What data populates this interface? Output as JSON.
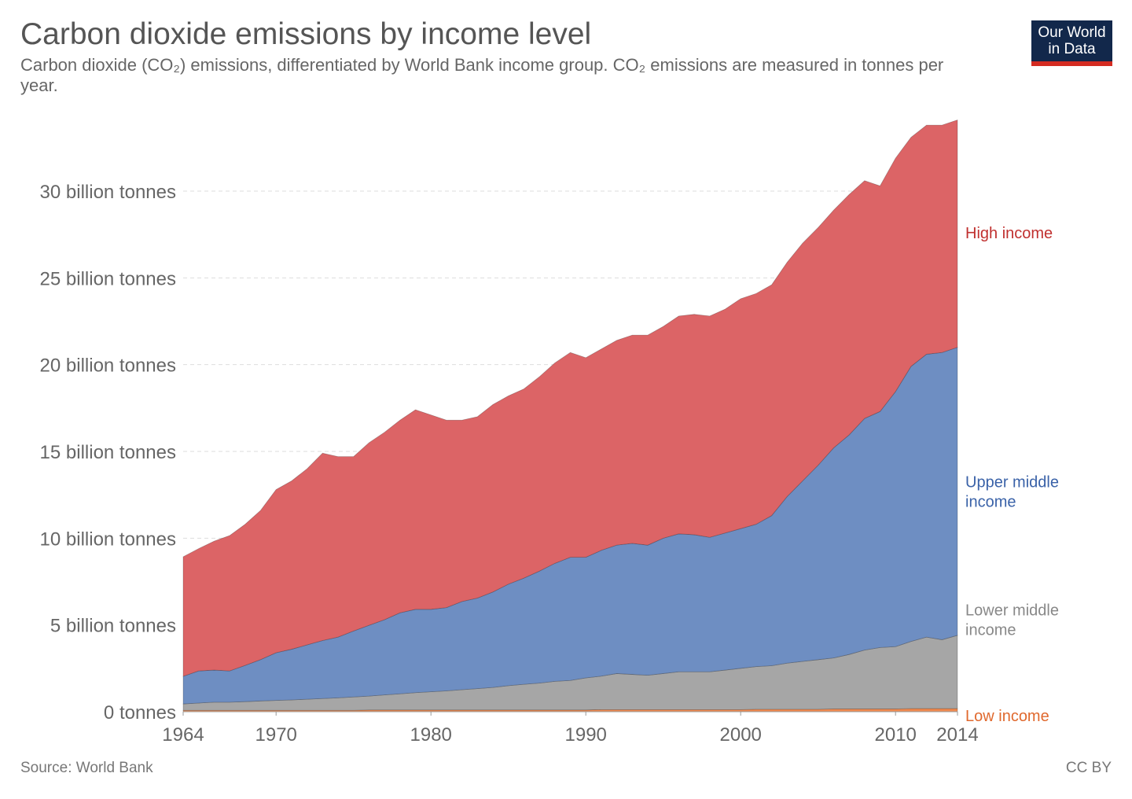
{
  "title": "Carbon dioxide emissions by income level",
  "subtitle": "Carbon dioxide (CO₂) emissions, differentiated by World Bank income group. CO₂ emissions are measured in tonnes per year.",
  "logo": "Our World in Data",
  "source": "Source: World Bank",
  "license": "CC BY",
  "chart_data": {
    "type": "area",
    "stacked": true,
    "title": "Carbon dioxide emissions by income level",
    "unit": "billion tonnes",
    "x": [
      1964,
      1965,
      1966,
      1967,
      1968,
      1969,
      1970,
      1971,
      1972,
      1973,
      1974,
      1975,
      1976,
      1977,
      1978,
      1979,
      1980,
      1981,
      1982,
      1983,
      1984,
      1985,
      1986,
      1987,
      1988,
      1989,
      1990,
      1991,
      1992,
      1993,
      1994,
      1995,
      1996,
      1997,
      1998,
      1999,
      2000,
      2001,
      2002,
      2003,
      2004,
      2005,
      2006,
      2007,
      2008,
      2009,
      2010,
      2011,
      2012,
      2013,
      2014
    ],
    "xticks": [
      "1964",
      "1970",
      "1980",
      "1990",
      "2000",
      "2010",
      "2014"
    ],
    "xtick_values": [
      1964,
      1970,
      1980,
      1990,
      2000,
      2010,
      2014
    ],
    "yticks": [
      "0 tonnes",
      "5 billion tonnes",
      "10 billion tonnes",
      "15 billion tonnes",
      "20 billion tonnes",
      "25 billion tonnes",
      "30 billion tonnes"
    ],
    "ytick_values": [
      0,
      5,
      10,
      15,
      20,
      25,
      30
    ],
    "ylim": [
      0,
      34.1
    ],
    "grid": "horizontal dashed",
    "legend": "right, inline labels",
    "series": [
      {
        "name": "Low income",
        "color": "#f08a50",
        "label_color": "#e0692e",
        "values": [
          0.08,
          0.08,
          0.08,
          0.08,
          0.08,
          0.08,
          0.08,
          0.08,
          0.08,
          0.08,
          0.08,
          0.08,
          0.1,
          0.1,
          0.1,
          0.1,
          0.1,
          0.1,
          0.1,
          0.1,
          0.1,
          0.1,
          0.1,
          0.1,
          0.1,
          0.1,
          0.1,
          0.12,
          0.12,
          0.12,
          0.12,
          0.12,
          0.12,
          0.12,
          0.12,
          0.12,
          0.12,
          0.14,
          0.14,
          0.14,
          0.14,
          0.14,
          0.16,
          0.16,
          0.16,
          0.16,
          0.16,
          0.18,
          0.18,
          0.18,
          0.18
        ]
      },
      {
        "name": "Lower middle income",
        "color": "#a6a6a6",
        "label_color": "#888888",
        "values": [
          0.37,
          0.42,
          0.47,
          0.47,
          0.5,
          0.54,
          0.57,
          0.6,
          0.64,
          0.68,
          0.72,
          0.77,
          0.8,
          0.87,
          0.93,
          1.0,
          1.05,
          1.1,
          1.17,
          1.23,
          1.3,
          1.4,
          1.48,
          1.55,
          1.65,
          1.7,
          1.85,
          1.93,
          2.08,
          2.03,
          1.98,
          2.08,
          2.18,
          2.18,
          2.18,
          2.28,
          2.38,
          2.46,
          2.51,
          2.66,
          2.76,
          2.86,
          2.94,
          3.14,
          3.39,
          3.54,
          3.59,
          3.87,
          4.12,
          3.97,
          4.22
        ]
      },
      {
        "name": "Upper middle income",
        "color": "#6e8ec2",
        "label_color": "#3a62a8",
        "values": [
          1.59,
          1.85,
          1.85,
          1.8,
          2.09,
          2.38,
          2.75,
          2.92,
          3.13,
          3.34,
          3.5,
          3.8,
          4.08,
          4.33,
          4.67,
          4.8,
          4.75,
          4.8,
          5.08,
          5.22,
          5.5,
          5.85,
          6.12,
          6.45,
          6.8,
          7.1,
          6.95,
          7.25,
          7.4,
          7.55,
          7.5,
          7.8,
          7.95,
          7.9,
          7.75,
          7.9,
          8.05,
          8.2,
          8.65,
          9.6,
          10.4,
          11.2,
          12.1,
          12.65,
          13.35,
          13.6,
          14.7,
          15.85,
          16.3,
          16.55,
          16.6
        ]
      },
      {
        "name": "High income",
        "color": "#dc6466",
        "label_color": "#c0302f",
        "values": [
          6.89,
          7.05,
          7.43,
          7.8,
          8.13,
          8.6,
          9.4,
          9.7,
          10.15,
          10.8,
          10.4,
          10.05,
          10.52,
          10.8,
          11.1,
          11.5,
          11.2,
          10.8,
          10.45,
          10.45,
          10.8,
          10.85,
          10.9,
          11.2,
          11.55,
          11.8,
          11.5,
          11.6,
          11.8,
          12.0,
          12.1,
          12.2,
          12.55,
          12.7,
          12.75,
          12.9,
          13.25,
          13.3,
          13.3,
          13.5,
          13.7,
          13.7,
          13.7,
          13.85,
          13.7,
          13.0,
          13.45,
          13.2,
          13.2,
          13.1,
          13.1
        ]
      }
    ],
    "series_labels": [
      "Low income",
      "Lower middle\nincome",
      "Upper middle\nincome",
      "High income"
    ]
  }
}
